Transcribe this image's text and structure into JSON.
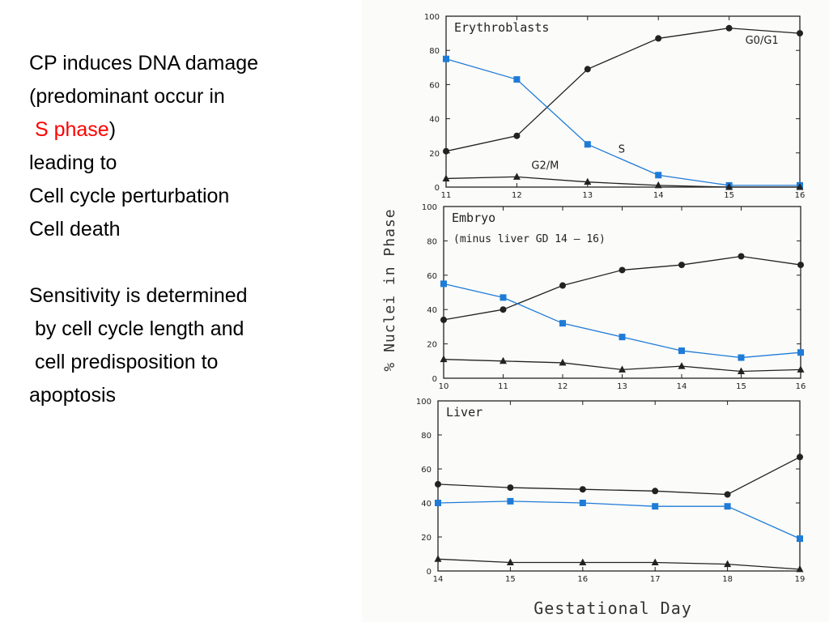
{
  "text": {
    "lines": [
      {
        "parts": [
          {
            "t": "CP induces DNA damage"
          }
        ]
      },
      {
        "parts": [
          {
            "t": "(predominant occur in"
          }
        ]
      },
      {
        "parts": [
          {
            "t": " "
          },
          {
            "t": "S phase",
            "red": true
          },
          {
            "t": ")"
          }
        ]
      },
      {
        "parts": [
          {
            "t": "leading to"
          }
        ]
      },
      {
        "parts": [
          {
            "t": "Cell cycle perturbation"
          }
        ]
      },
      {
        "parts": [
          {
            "t": "Cell death"
          }
        ]
      },
      {
        "parts": []
      },
      {
        "parts": [
          {
            "t": "Sensitivity is determined"
          }
        ]
      },
      {
        "parts": [
          {
            "t": " by cell cycle length and"
          }
        ]
      },
      {
        "parts": [
          {
            "t": " cell predisposition to"
          }
        ]
      },
      {
        "parts": [
          {
            "t": "apoptosis"
          }
        ]
      }
    ]
  },
  "figure": {
    "ylabel": "% Nuclei in Phase",
    "xlabel": "Gestational Day"
  },
  "colors": {
    "highlight": "#ff0000",
    "s_series": "#1f7bd8",
    "line": "#222222"
  },
  "chart_data": [
    {
      "type": "line",
      "title": "Erythroblasts",
      "x": [
        11,
        12,
        13,
        14,
        15,
        16
      ],
      "ylim": [
        0,
        100
      ],
      "yticks": [
        0,
        20,
        40,
        60,
        80,
        100
      ],
      "series": [
        {
          "name": "G0/G1",
          "marker": "circle",
          "values": [
            21,
            30,
            69,
            87,
            93,
            90
          ]
        },
        {
          "name": "S",
          "marker": "square",
          "values": [
            75,
            63,
            25,
            7,
            1,
            1
          ]
        },
        {
          "name": "G2/M",
          "marker": "triangle",
          "values": [
            5,
            6,
            3,
            1,
            0,
            0
          ]
        }
      ]
    },
    {
      "type": "line",
      "title": "Embryo",
      "subtitle": "(minus liver GD 14 – 16)",
      "x": [
        10,
        11,
        12,
        13,
        14,
        15,
        16
      ],
      "ylim": [
        0,
        100
      ],
      "yticks": [
        0,
        20,
        40,
        60,
        80,
        100
      ],
      "series": [
        {
          "name": "G0/G1",
          "marker": "circle",
          "values": [
            34,
            40,
            54,
            63,
            66,
            71,
            66
          ]
        },
        {
          "name": "S",
          "marker": "square",
          "values": [
            55,
            47,
            32,
            24,
            16,
            12,
            15
          ]
        },
        {
          "name": "G2/M",
          "marker": "triangle",
          "values": [
            11,
            10,
            9,
            5,
            7,
            4,
            5
          ]
        }
      ]
    },
    {
      "type": "line",
      "title": "Liver",
      "x": [
        14,
        15,
        16,
        17,
        18,
        19
      ],
      "ylim": [
        0,
        100
      ],
      "yticks": [
        0,
        20,
        40,
        60,
        80,
        100
      ],
      "series": [
        {
          "name": "G0/G1",
          "marker": "circle",
          "values": [
            51,
            49,
            48,
            47,
            45,
            67
          ]
        },
        {
          "name": "S",
          "marker": "square",
          "values": [
            40,
            41,
            40,
            38,
            38,
            19
          ]
        },
        {
          "name": "G2/M",
          "marker": "triangle",
          "values": [
            7,
            5,
            5,
            5,
            4,
            1
          ]
        }
      ]
    }
  ]
}
